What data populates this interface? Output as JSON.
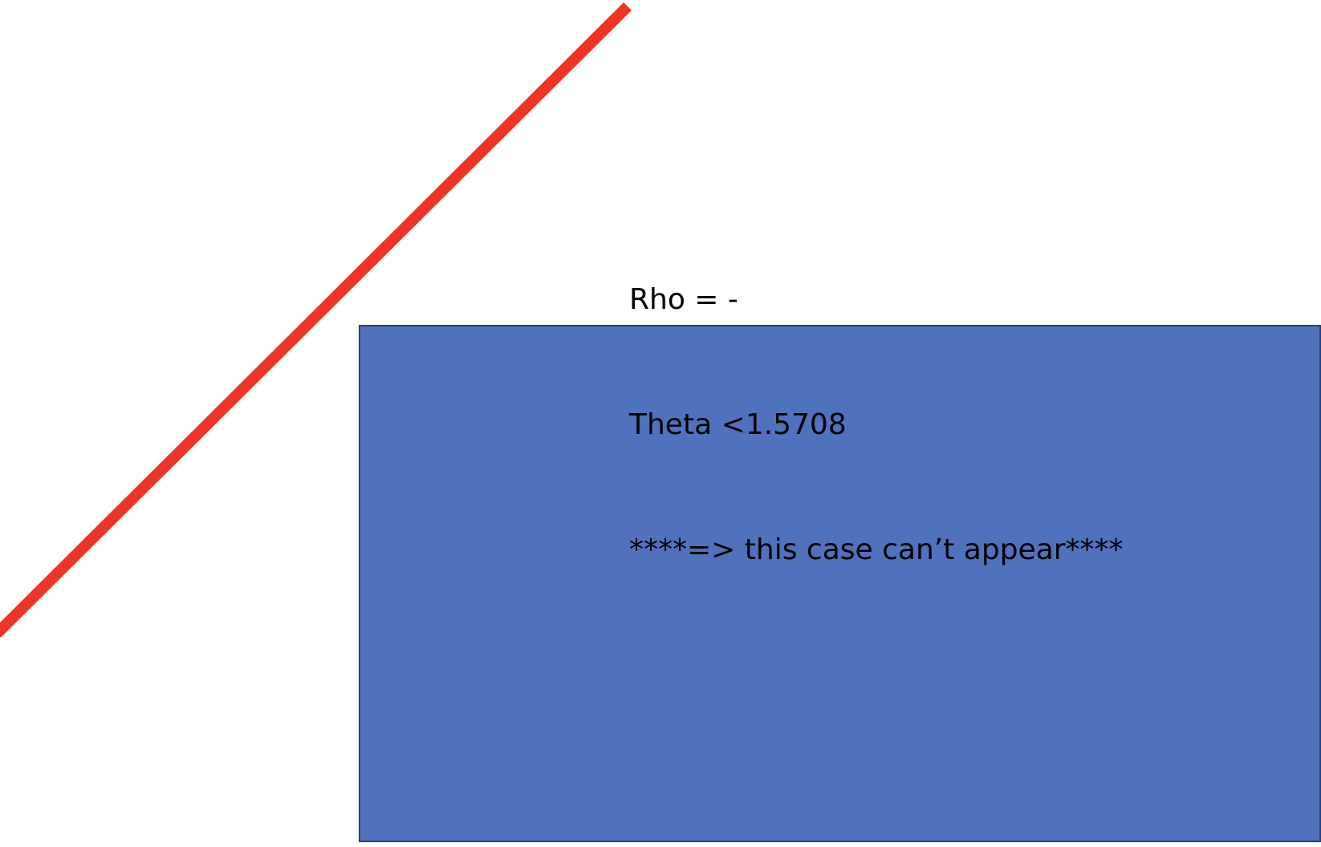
{
  "annotation": {
    "rho_line": "Rho = -",
    "theta_line": "Theta <1.5708",
    "note_line": "****=> this case can’t appear****"
  },
  "shapes": {
    "line_color": "#EE3524",
    "rectangle_fill": "#5071BC",
    "rectangle_border": "#2E3F6E"
  }
}
